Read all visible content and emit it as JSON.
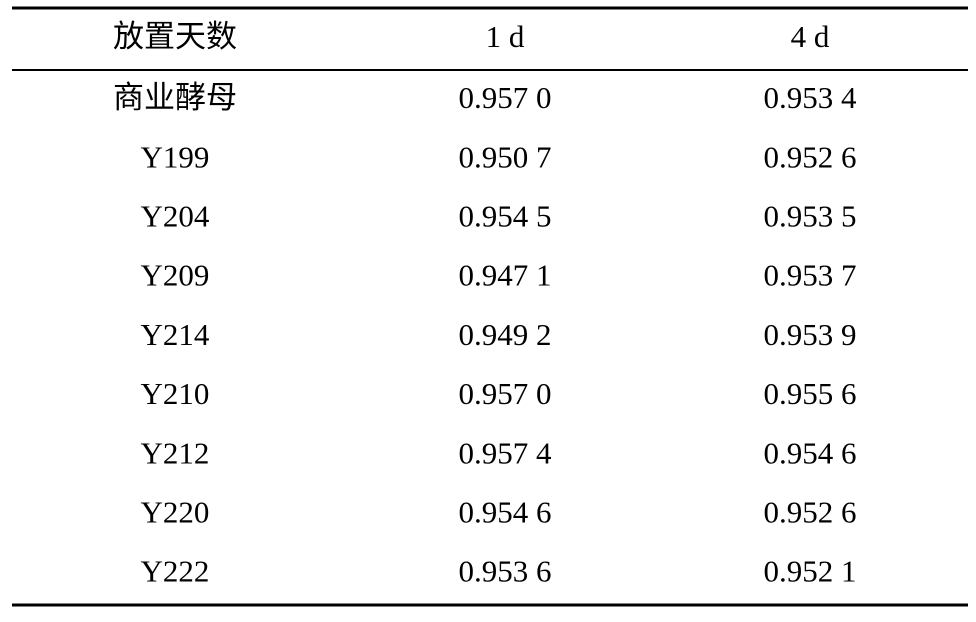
{
  "table": {
    "header": [
      "放置天数",
      "1 d",
      "4 d"
    ],
    "rows": [
      [
        "商业酵母",
        "0.957 0",
        "0.953 4"
      ],
      [
        "Y199",
        "0.950 7",
        "0.952 6"
      ],
      [
        "Y204",
        "0.954 5",
        "0.953 5"
      ],
      [
        "Y209",
        "0.947 1",
        "0.953 7"
      ],
      [
        "Y214",
        "0.949 2",
        "0.953 9"
      ],
      [
        "Y210",
        "0.957 0",
        "0.955 6"
      ],
      [
        "Y212",
        "0.957 4",
        "0.954 6"
      ],
      [
        "Y220",
        "0.954 6",
        "0.952 6"
      ],
      [
        "Y222",
        "0.953 6",
        "0.952 1"
      ]
    ]
  }
}
